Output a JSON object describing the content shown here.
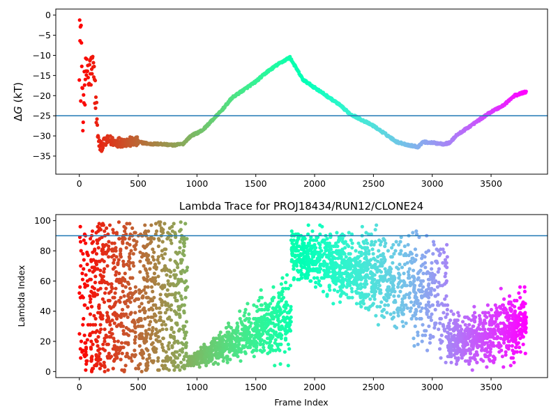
{
  "chart_data": [
    {
      "type": "scatter",
      "title": "",
      "xlabel": "",
      "ylabel": "ΔG (kT)",
      "ylabel_parts": {
        "delta": "Δ",
        "g": "G",
        "unit": " (kT)"
      },
      "xlim": [
        -200,
        3980
      ],
      "ylim": [
        -39.5,
        1.5
      ],
      "xticks": [
        0,
        500,
        1000,
        1500,
        2000,
        2500,
        3000,
        3500
      ],
      "xtick_labels": [
        "0",
        "500",
        "1000",
        "1500",
        "2000",
        "2500",
        "3000",
        "3500"
      ],
      "yticks": [
        0,
        -5,
        -10,
        -15,
        -20,
        -25,
        -30,
        -35
      ],
      "ytick_labels": [
        "0",
        "−5",
        "−10",
        "−15",
        "−20",
        "−25",
        "−30",
        "−35"
      ],
      "hline": -25,
      "hline_color": "#1f77b4",
      "colormap": "rainbow",
      "grid": false,
      "n_frames": 3800,
      "trace": [
        [
          0,
          -2
        ],
        [
          10,
          -3.5
        ],
        [
          20,
          -10
        ],
        [
          30,
          -28
        ],
        [
          40,
          -17
        ],
        [
          50,
          -14
        ],
        [
          60,
          -16
        ],
        [
          70,
          -12
        ],
        [
          80,
          -18
        ],
        [
          90,
          -13
        ],
        [
          100,
          -14
        ],
        [
          120,
          -13
        ],
        [
          140,
          -22
        ],
        [
          160,
          -31
        ],
        [
          180,
          -33
        ],
        [
          200,
          -32
        ],
        [
          250,
          -31
        ],
        [
          300,
          -31.5
        ],
        [
          400,
          -31.5
        ],
        [
          500,
          -31.5
        ],
        [
          600,
          -32
        ],
        [
          700,
          -32
        ],
        [
          800,
          -32.3
        ],
        [
          880,
          -32
        ],
        [
          930,
          -30.5
        ],
        [
          960,
          -29.8
        ],
        [
          1000,
          -29.3
        ],
        [
          1050,
          -28.5
        ],
        [
          1100,
          -27
        ],
        [
          1150,
          -25.5
        ],
        [
          1200,
          -24
        ],
        [
          1300,
          -20.5
        ],
        [
          1400,
          -18.5
        ],
        [
          1500,
          -16.5
        ],
        [
          1600,
          -14
        ],
        [
          1700,
          -12
        ],
        [
          1790,
          -10.5
        ],
        [
          1850,
          -13.5
        ],
        [
          1900,
          -16
        ],
        [
          2000,
          -18
        ],
        [
          2100,
          -20
        ],
        [
          2200,
          -22
        ],
        [
          2300,
          -24.5
        ],
        [
          2400,
          -26
        ],
        [
          2500,
          -27.5
        ],
        [
          2600,
          -29.5
        ],
        [
          2700,
          -31.5
        ],
        [
          2800,
          -32.3
        ],
        [
          2880,
          -32.7
        ],
        [
          2920,
          -31.5
        ],
        [
          3000,
          -31.7
        ],
        [
          3100,
          -32
        ],
        [
          3150,
          -31.7
        ],
        [
          3200,
          -30
        ],
        [
          3300,
          -28
        ],
        [
          3400,
          -26
        ],
        [
          3500,
          -24
        ],
        [
          3600,
          -22.5
        ],
        [
          3700,
          -20
        ],
        [
          3800,
          -19
        ]
      ]
    },
    {
      "type": "scatter",
      "title": "Lambda Trace for PROJ18434/RUN12/CLONE24",
      "xlabel": "Frame Index",
      "ylabel": "Lambda Index",
      "xlim": [
        -200,
        3980
      ],
      "ylim": [
        -4,
        104
      ],
      "xticks": [
        0,
        500,
        1000,
        1500,
        2000,
        2500,
        3000,
        3500
      ],
      "xtick_labels": [
        "0",
        "500",
        "1000",
        "1500",
        "2000",
        "2500",
        "3000",
        "3500"
      ],
      "yticks": [
        0,
        20,
        40,
        60,
        80,
        100
      ],
      "ytick_labels": [
        "0",
        "20",
        "40",
        "60",
        "80",
        "100"
      ],
      "hline": 90,
      "hline_color": "#1f77b4",
      "colormap": "rainbow",
      "grid": false,
      "n_frames": 3800,
      "segments": [
        {
          "x": [
            0,
            100
          ],
          "y": [
            0,
            98
          ],
          "n": 70
        },
        {
          "x": [
            100,
            920
          ],
          "y": [
            0,
            99
          ],
          "n": 900
        },
        {
          "x": [
            920,
            1800
          ],
          "y_low": [
            3,
            3
          ],
          "y_high": [
            10,
            72
          ],
          "n": 750
        },
        {
          "x": [
            1800,
            2500
          ],
          "y_low": [
            58,
            30
          ],
          "y_high": [
            99,
            99
          ],
          "n": 700
        },
        {
          "x": [
            2500,
            3130
          ],
          "y_low": [
            30,
            0
          ],
          "y_high": [
            99,
            99
          ],
          "n": 450
        },
        {
          "x": [
            3130,
            3800
          ],
          "y_low": [
            0,
            0
          ],
          "y_high": [
            40,
            62
          ],
          "n": 650
        }
      ]
    }
  ]
}
